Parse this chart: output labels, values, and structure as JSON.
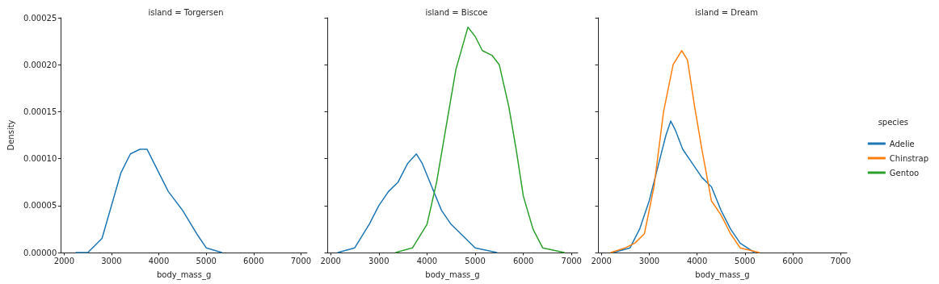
{
  "chart_data": [
    {
      "type": "line",
      "title": "island = Torgersen",
      "xlabel": "body_mass_g",
      "ylabel": "Density",
      "marker": "none",
      "grid": false,
      "xlim": [
        1930,
        7130
      ],
      "xticks": [
        2000,
        3000,
        4000,
        5000,
        6000,
        7000
      ],
      "ylim": [
        0,
        0.00025
      ],
      "yticks": [
        {
          "value": 0,
          "label": "0.00000"
        },
        {
          "value": 5e-05,
          "label": "0.00005"
        },
        {
          "value": 0.0001,
          "label": "0.00010"
        },
        {
          "value": 0.00015,
          "label": "0.00015"
        },
        {
          "value": 0.0002,
          "label": "0.00020"
        },
        {
          "value": 0.00025,
          "label": "0.00025"
        }
      ],
      "series": [
        {
          "color": "#1f77b4",
          "x": [
            2250,
            2500,
            2600,
            2800,
            3000,
            3200,
            3400,
            3600,
            3750,
            3900,
            4000,
            4200,
            4500,
            4800,
            5000,
            5330
          ],
          "values": [
            0,
            0,
            5e-06,
            1.5e-05,
            5e-05,
            8.5e-05,
            0.000105,
            0.00011,
            0.00011,
            9.5e-05,
            8.5e-05,
            6.5e-05,
            4.5e-05,
            2e-05,
            5e-06,
            0
          ]
        }
      ]
    },
    {
      "type": "line",
      "title": "island = Biscoe",
      "xlabel": "body_mass_g",
      "marker": "none",
      "grid": false,
      "tick_labels": "x",
      "xlim": [
        1930,
        7130
      ],
      "xticks": [
        2000,
        3000,
        4000,
        5000,
        6000,
        7000
      ],
      "ylim": [
        0,
        0.00025
      ],
      "yticks": [
        {
          "value": 0,
          "label": null
        },
        {
          "value": 5e-05,
          "label": null
        },
        {
          "value": 0.0001,
          "label": null
        },
        {
          "value": 0.00015,
          "label": null
        },
        {
          "value": 0.0002,
          "label": null
        },
        {
          "value": 0.00025,
          "label": null
        }
      ],
      "series": [
        {
          "color": "#1f77b4",
          "x": [
            2150,
            2500,
            2800,
            3000,
            3200,
            3400,
            3600,
            3780,
            3900,
            4100,
            4300,
            4500,
            4800,
            5000,
            5450
          ],
          "values": [
            0,
            5e-06,
            3e-05,
            5e-05,
            6.5e-05,
            7.5e-05,
            9.5e-05,
            0.000105,
            9.5e-05,
            7e-05,
            4.5e-05,
            3e-05,
            1.5e-05,
            5e-06,
            0
          ]
        },
        {
          "name": "Gentoo",
          "color": "#2ca02c",
          "x": [
            3350,
            3700,
            4000,
            4200,
            4400,
            4600,
            4850,
            5000,
            5150,
            5350,
            5500,
            5700,
            5850,
            6000,
            6200,
            6400,
            6850
          ],
          "values": [
            0,
            5e-06,
            3e-05,
            7.5e-05,
            0.000135,
            0.000195,
            0.00024,
            0.00023,
            0.000215,
            0.00021,
            0.0002,
            0.000155,
            0.00011,
            6e-05,
            2.5e-05,
            5e-06,
            0
          ]
        }
      ]
    },
    {
      "type": "line",
      "title": "island = Dream",
      "xlabel": "body_mass_g",
      "marker": "none",
      "grid": false,
      "tick_labels": "x",
      "legend": "right",
      "legend_title": "species",
      "xlim": [
        1930,
        7130
      ],
      "xticks": [
        2000,
        3000,
        4000,
        5000,
        6000,
        7000
      ],
      "ylim": [
        0,
        0.00025
      ],
      "yticks": [
        {
          "value": 0,
          "label": null
        },
        {
          "value": 5e-05,
          "label": null
        },
        {
          "value": 0.0001,
          "label": null
        },
        {
          "value": 0.00015,
          "label": null
        },
        {
          "value": 0.0002,
          "label": null
        },
        {
          "value": 0.00025,
          "label": null
        }
      ],
      "series": [
        {
          "name": "Adelie",
          "color": "#1f77b4",
          "x": [
            2250,
            2600,
            2800,
            3000,
            3200,
            3350,
            3450,
            3550,
            3700,
            3900,
            4100,
            4300,
            4500,
            4700,
            4900,
            5200
          ],
          "values": [
            0,
            5e-06,
            2.5e-05,
            5.5e-05,
            9.5e-05,
            0.000125,
            0.00014,
            0.00013,
            0.00011,
            9.5e-05,
            8e-05,
            7e-05,
            4.5e-05,
            2.5e-05,
            1e-05,
            0
          ]
        },
        {
          "name": "Chinstrap",
          "color": "#ff7f0e",
          "x": [
            2200,
            2500,
            2700,
            2900,
            3100,
            3300,
            3500,
            3680,
            3800,
            3950,
            4100,
            4300,
            4500,
            4700,
            4900,
            5300
          ],
          "values": [
            0,
            5e-06,
            1e-05,
            2e-05,
            7e-05,
            0.00015,
            0.0002,
            0.000215,
            0.000205,
            0.000155,
            0.00011,
            5.5e-05,
            4e-05,
            2e-05,
            5e-06,
            0
          ]
        }
      ]
    }
  ]
}
